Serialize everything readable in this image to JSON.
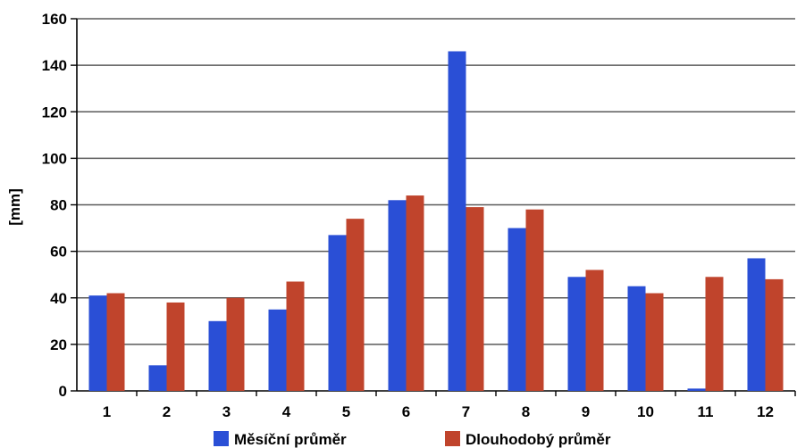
{
  "chart_data": {
    "type": "bar",
    "title": "",
    "xlabel": "",
    "ylabel": "[mm]",
    "ylim": [
      0,
      160
    ],
    "yticks": [
      0,
      20,
      40,
      60,
      80,
      100,
      120,
      140,
      160
    ],
    "grid": true,
    "legend_position": "bottom",
    "categories": [
      "1",
      "2",
      "3",
      "4",
      "5",
      "6",
      "7",
      "8",
      "9",
      "10",
      "11",
      "12"
    ],
    "series": [
      {
        "name": "Měsíční průměr",
        "color": "#2a4fd6",
        "values": [
          41,
          11,
          30,
          35,
          67,
          82,
          146,
          70,
          49,
          45,
          1,
          57
        ]
      },
      {
        "name": "Dlouhodobý průměr",
        "color": "#c0442c",
        "values": [
          42,
          38,
          40,
          47,
          74,
          84,
          79,
          78,
          52,
          42,
          49,
          48
        ]
      }
    ]
  }
}
